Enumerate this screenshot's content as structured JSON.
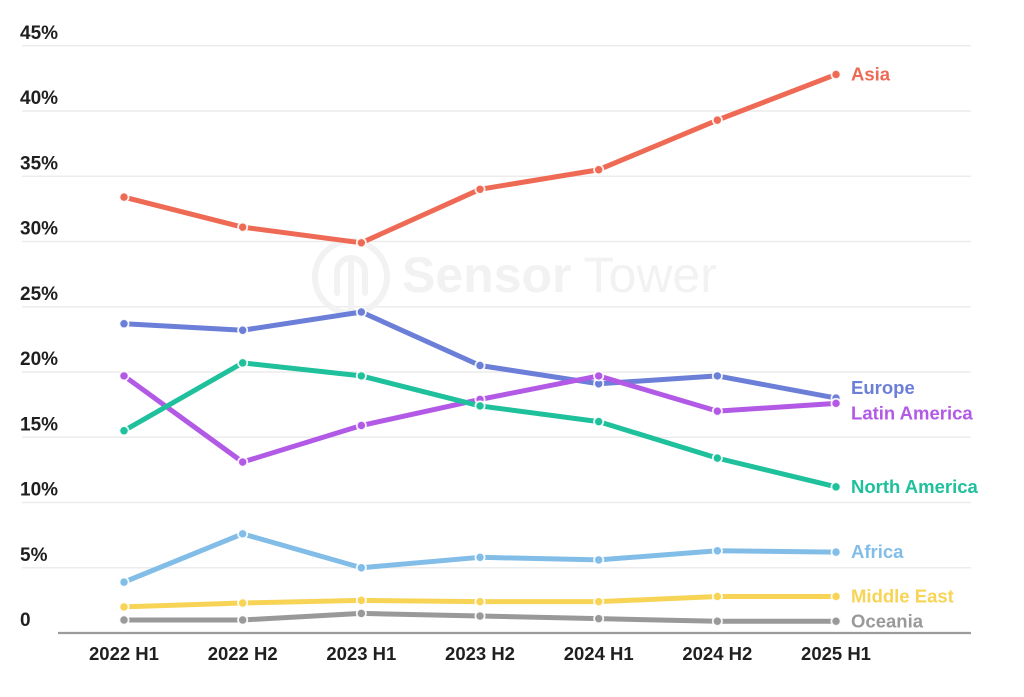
{
  "watermark": {
    "icon": "sensor-tower-logo-icon",
    "text_bold": "Sensor",
    "text_light": "Tower"
  },
  "colors": {
    "background": "#ffffff",
    "grid": "#ececec",
    "axis": "#9b9b9b",
    "tick_text": "#1f1f1f",
    "watermark": "#f2f2f2"
  },
  "chart_data": {
    "type": "line",
    "title": "",
    "xlabel": "",
    "ylabel": "",
    "ylim": [
      0,
      45
    ],
    "grid": true,
    "legend_position": "line-end-labels-right",
    "categories": [
      "2022 H1",
      "2022 H2",
      "2023 H1",
      "2023 H2",
      "2024 H1",
      "2024 H2",
      "2025 H1"
    ],
    "y_tick_labels": [
      "0",
      "5%",
      "10%",
      "15%",
      "20%",
      "25%",
      "30%",
      "35%",
      "40%",
      "45%"
    ],
    "series": [
      {
        "name": "Asia",
        "color": "#ee6a55",
        "values": [
          33.4,
          31.1,
          29.9,
          34.0,
          35.5,
          39.3,
          42.8
        ]
      },
      {
        "name": "Europe",
        "color": "#6b7ed8",
        "values": [
          23.7,
          23.2,
          24.6,
          20.5,
          19.1,
          19.7,
          18.0
        ]
      },
      {
        "name": "Latin America",
        "color": "#b25ae6",
        "values": [
          19.7,
          13.1,
          15.9,
          17.9,
          19.7,
          17.0,
          17.6
        ]
      },
      {
        "name": "North America",
        "color": "#1fc09c",
        "values": [
          15.5,
          20.7,
          19.7,
          17.4,
          16.2,
          13.4,
          11.2
        ]
      },
      {
        "name": "Africa",
        "color": "#82bde8",
        "values": [
          3.9,
          7.6,
          5.0,
          5.8,
          5.6,
          6.3,
          6.2
        ]
      },
      {
        "name": "Middle East",
        "color": "#f7d456",
        "values": [
          2.0,
          2.3,
          2.5,
          2.4,
          2.4,
          2.8,
          2.8
        ]
      },
      {
        "name": "Oceania",
        "color": "#999999",
        "values": [
          1.0,
          1.0,
          1.5,
          1.3,
          1.1,
          0.9,
          0.9
        ]
      }
    ]
  }
}
